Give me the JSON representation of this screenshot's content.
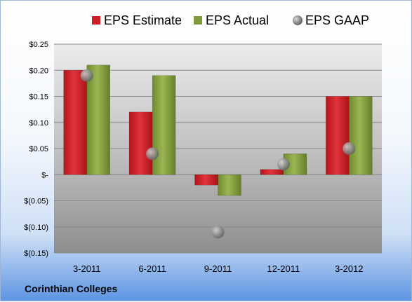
{
  "chart_data": {
    "type": "bar",
    "categories": [
      "3-2011",
      "6-2011",
      "9-2011",
      "12-2011",
      "3-2012"
    ],
    "series": [
      {
        "name": "EPS Estimate",
        "kind": "bar",
        "color": "#cc1f26",
        "values": [
          0.2,
          0.12,
          -0.02,
          0.01,
          0.15
        ]
      },
      {
        "name": "EPS Actual",
        "kind": "bar",
        "color": "#7f9a3a",
        "values": [
          0.21,
          0.19,
          -0.04,
          0.04,
          0.15
        ]
      },
      {
        "name": "EPS GAAP",
        "kind": "marker",
        "color": "#9a9a9a",
        "values": [
          0.19,
          0.04,
          -0.11,
          0.02,
          0.05
        ]
      }
    ],
    "ylim": [
      -0.15,
      0.25
    ],
    "yticks": [
      0.25,
      0.2,
      0.15,
      0.1,
      0.05,
      0,
      -0.05,
      -0.1,
      -0.15
    ],
    "ytick_labels": [
      "$0.25",
      "$0.20",
      "$0.15",
      "$0.10",
      "$0.05",
      "$-",
      "$(0.05)",
      "$(0.10)",
      "$(0.15)"
    ],
    "legend_position": "top",
    "grid": true,
    "title": "",
    "xlabel": "",
    "ylabel": ""
  },
  "footer": {
    "company": "Corinthian Colleges"
  }
}
